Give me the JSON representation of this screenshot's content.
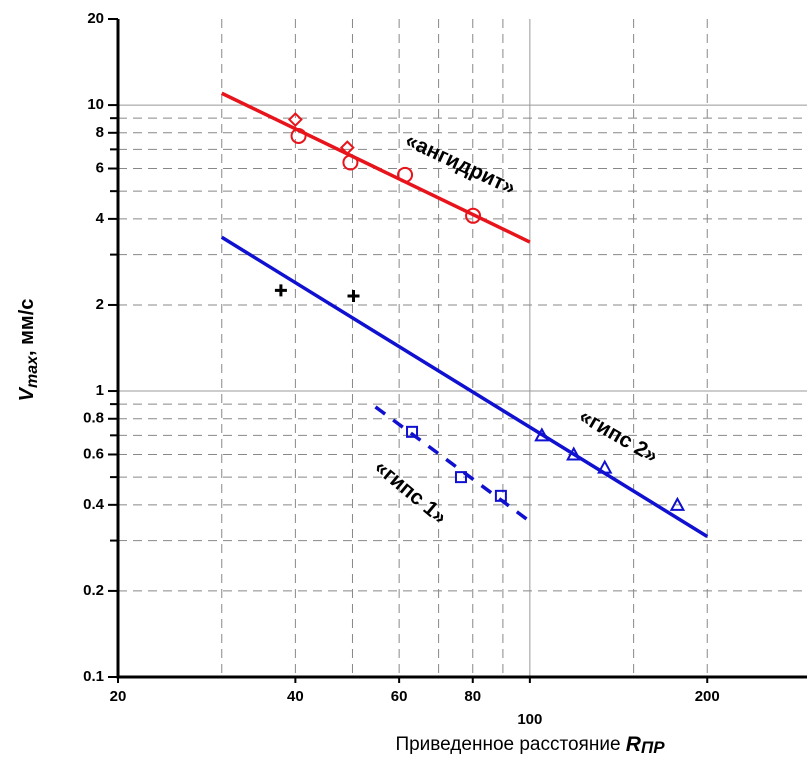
{
  "chart_data": {
    "type": "scatter",
    "x_label": {
      "text": "Приведенное расстояние ",
      "symbol": "R",
      "subscript": "ПР"
    },
    "y_label": {
      "symbol": "V",
      "subscript": "max",
      "text": ", мм/с"
    },
    "log_x": true,
    "log_y": true,
    "grid": true,
    "xlim": [
      20,
      300
    ],
    "ylim": [
      0.1,
      20
    ],
    "xticks": [
      20,
      40,
      60,
      80,
      100,
      200
    ],
    "x_minor_ticks": [
      30,
      50,
      70,
      90,
      150
    ],
    "yticks": [
      0.1,
      0.2,
      0.4,
      0.6,
      0.8,
      1,
      2,
      4,
      6,
      8,
      10,
      20
    ],
    "y_minor_ticks": [
      0.3,
      0.5,
      0.7,
      0.9,
      3,
      5,
      7,
      9
    ],
    "series": [
      {
        "marker": "diamond",
        "color": "#e8141b",
        "x": [
          40,
          49
        ],
        "values": [
          8.9,
          7.1
        ]
      },
      {
        "marker": "circle",
        "color": "#e8141b",
        "x": [
          40.5,
          49.6,
          61.4,
          80.1
        ],
        "values": [
          7.8,
          6.3,
          5.7,
          4.1
        ]
      },
      {
        "marker": "plus",
        "color": "#000000",
        "x": [
          37.8,
          50.2
        ],
        "values": [
          2.25,
          2.15
        ]
      },
      {
        "marker": "triangle",
        "color": "#1010d0",
        "x": [
          104.8,
          118.7,
          134,
          178
        ],
        "values": [
          0.7,
          0.6,
          0.54,
          0.4
        ]
      },
      {
        "marker": "square",
        "color": "#1010d0",
        "x": [
          63.1,
          76.4,
          89.3
        ],
        "values": [
          0.72,
          0.5,
          0.43
        ]
      },
      {
        "line": "solid",
        "color": "#e8141b",
        "x": [
          30,
          100
        ],
        "values": [
          11.0,
          3.32
        ]
      },
      {
        "line": "solid",
        "color": "#1010d0",
        "x": [
          30,
          200
        ],
        "values": [
          3.45,
          0.31
        ]
      },
      {
        "line": "dashed",
        "color": "#1010d0",
        "x": [
          54.7,
          100
        ],
        "values": [
          0.88,
          0.35
        ]
      }
    ],
    "annotations": [
      "«ангидрит»",
      "«гипс 2»",
      "«гипс 1»"
    ]
  }
}
